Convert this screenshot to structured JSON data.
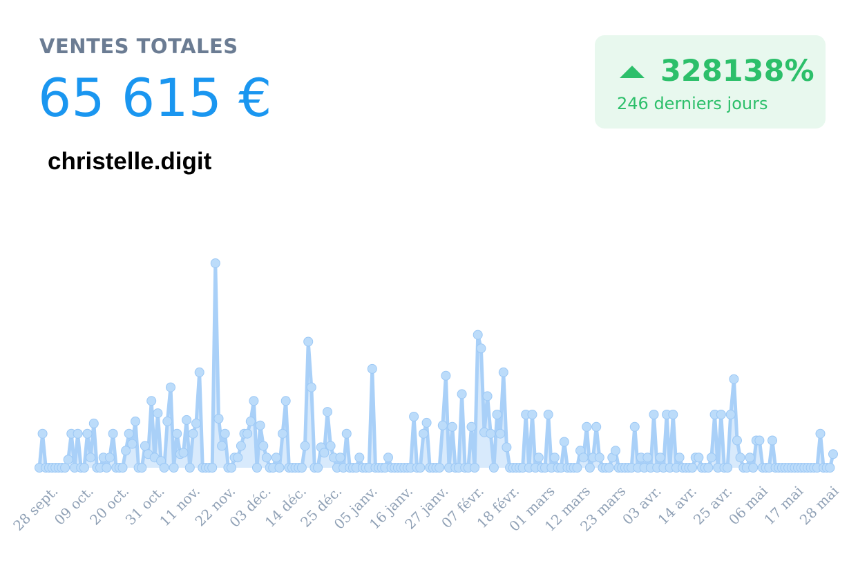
{
  "kpi": {
    "title": "VENTES TOTALES",
    "value": "65 615 €",
    "account": "christelle.digit"
  },
  "trend": {
    "icon": "triangle-up-icon",
    "percent": "328138%",
    "period": "246 derniers jours",
    "color": "#2cbf6a"
  },
  "chart_data": {
    "type": "line",
    "x_tick_labels": [
      "28 sept.",
      "09 oct.",
      "20 oct.",
      "31 oct.",
      "11 nov.",
      "22 nov.",
      "03 déc.",
      "14 déc.",
      "25 déc.",
      "05 janv.",
      "16 janv.",
      "27 janv.",
      "07 févr.",
      "18 févr.",
      "01 mars",
      "12 mars",
      "23 mars",
      "03 avr.",
      "14 avr.",
      "25 avr.",
      "06 mai",
      "17 mai",
      "28 mai"
    ],
    "series_color": "#a9d0f8",
    "y_range": [
      0,
      300
    ],
    "grid": false,
    "legend": "none",
    "values": [
      0,
      50,
      0,
      0,
      0,
      0,
      0,
      0,
      0,
      12,
      50,
      0,
      50,
      0,
      0,
      50,
      15,
      65,
      0,
      0,
      15,
      0,
      15,
      50,
      0,
      0,
      0,
      25,
      50,
      35,
      68,
      0,
      0,
      32,
      20,
      98,
      15,
      80,
      10,
      0,
      68,
      118,
      0,
      50,
      20,
      22,
      70,
      0,
      50,
      65,
      140,
      0,
      0,
      0,
      0,
      300,
      72,
      32,
      50,
      0,
      0,
      15,
      15,
      32,
      50,
      50,
      68,
      98,
      0,
      62,
      32,
      15,
      0,
      0,
      15,
      0,
      50,
      98,
      0,
      0,
      0,
      0,
      0,
      32,
      185,
      118,
      0,
      0,
      30,
      22,
      82,
      32,
      15,
      0,
      15,
      0,
      50,
      0,
      0,
      0,
      15,
      0,
      0,
      0,
      145,
      0,
      0,
      0,
      0,
      15,
      0,
      0,
      0,
      0,
      0,
      0,
      0,
      75,
      0,
      0,
      50,
      66,
      0,
      0,
      0,
      0,
      62,
      135,
      0,
      60,
      0,
      0,
      108,
      0,
      0,
      60,
      0,
      195,
      175,
      52,
      105,
      50,
      0,
      78,
      50,
      140,
      30,
      0,
      0,
      0,
      0,
      0,
      78,
      0,
      78,
      0,
      15,
      0,
      0,
      78,
      0,
      15,
      0,
      0,
      38,
      0,
      0,
      0,
      0,
      25,
      15,
      60,
      0,
      15,
      60,
      15,
      0,
      0,
      0,
      15,
      25,
      0,
      0,
      0,
      0,
      0,
      60,
      0,
      15,
      0,
      15,
      0,
      78,
      0,
      15,
      0,
      78,
      0,
      78,
      0,
      15,
      0,
      0,
      0,
      0,
      15,
      15,
      0,
      0,
      0,
      15,
      78,
      0,
      78,
      0,
      0,
      78,
      130,
      40,
      15,
      0,
      0,
      15,
      0,
      40,
      40,
      0,
      0,
      0,
      40,
      0,
      0,
      0,
      0,
      0,
      0,
      0,
      0,
      0,
      0,
      0,
      0,
      0,
      0,
      50,
      0,
      0,
      0,
      20
    ]
  }
}
